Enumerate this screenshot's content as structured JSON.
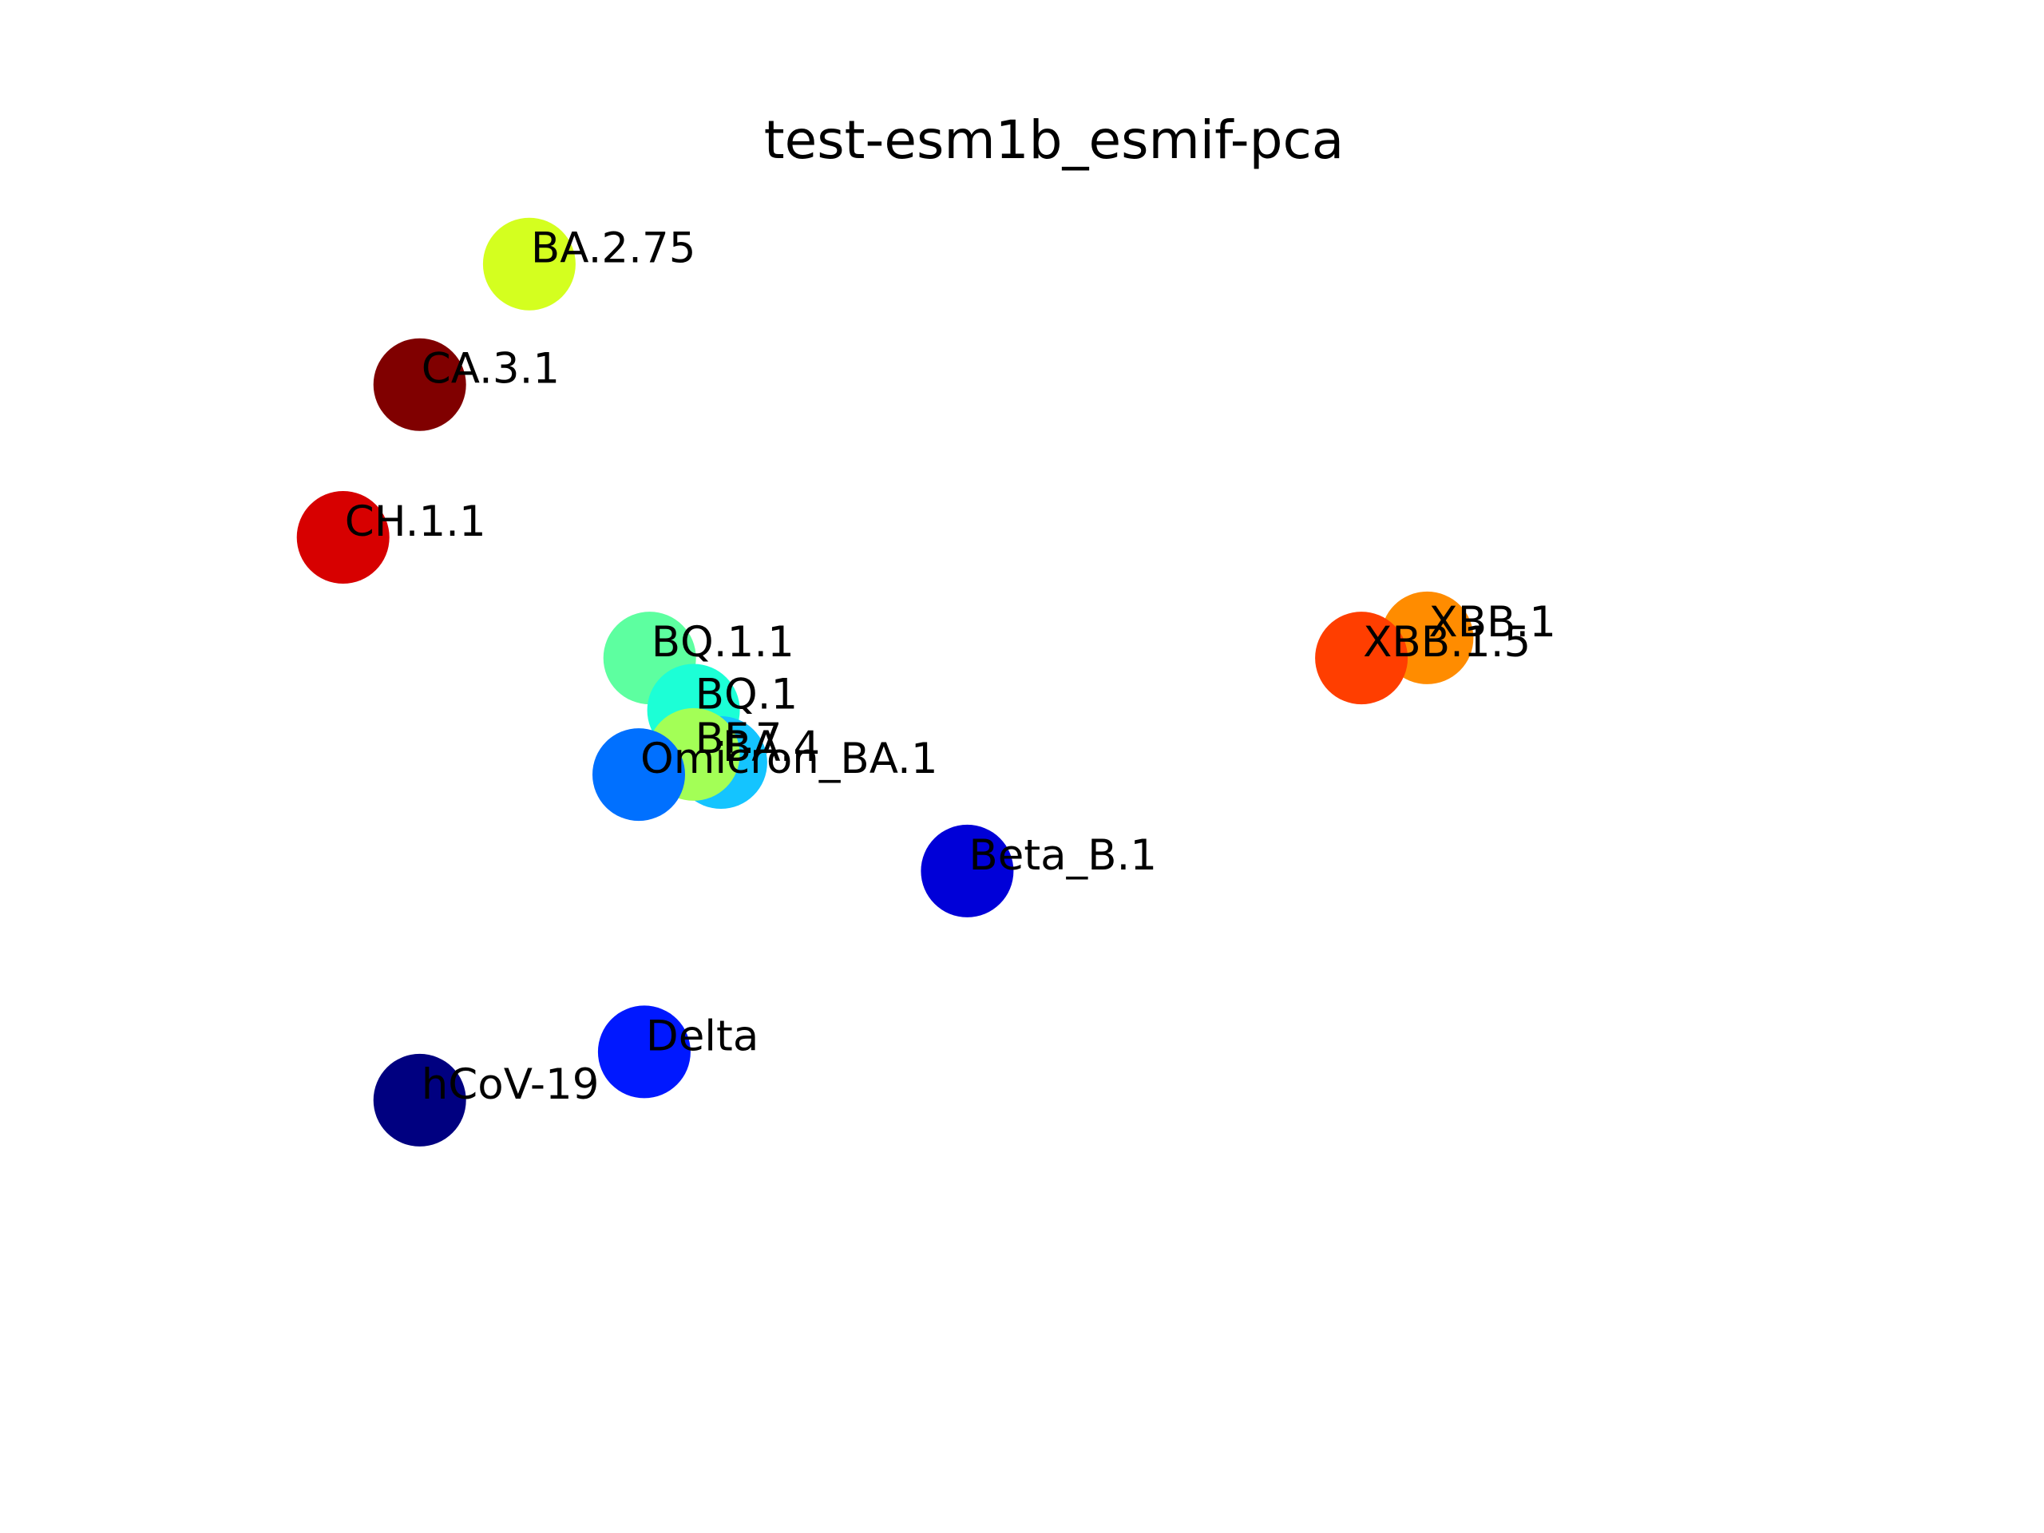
{
  "chart_data": {
    "type": "scatter",
    "title": "test-esm1b_esmif-pca",
    "xlabel": "",
    "ylabel": "",
    "axes_visible": false,
    "grid": false,
    "xlim": [
      -3.5,
      10.5
    ],
    "ylim": [
      -7.5,
      7.0
    ],
    "points": [
      {
        "label": "BA.2.75",
        "x": -1.0,
        "y": 6.0,
        "color": "#d4ff1f"
      },
      {
        "label": "CA.3.1",
        "x": -2.0,
        "y": 4.5,
        "color": "#800000"
      },
      {
        "label": "CH.1.1",
        "x": -2.7,
        "y": 2.6,
        "color": "#d70000"
      },
      {
        "label": "BQ.1.1",
        "x": 0.1,
        "y": 1.1,
        "color": "#5dffa0"
      },
      {
        "label": "BQ.1",
        "x": 0.5,
        "y": 0.45,
        "color": "#1cffd6"
      },
      {
        "label": "BA.4",
        "x": 0.75,
        "y": -0.2,
        "color": "#14c4ff"
      },
      {
        "label": "BF.7",
        "x": 0.5,
        "y": -0.1,
        "color": "#a3ff56"
      },
      {
        "label": "Omicron_BA.1",
        "x": 0.0,
        "y": -0.35,
        "color": "#0070ff"
      },
      {
        "label": "Beta_B.1",
        "x": 3.0,
        "y": -1.55,
        "color": "#0000d8"
      },
      {
        "label": "Delta",
        "x": 0.05,
        "y": -3.8,
        "color": "#0018ff"
      },
      {
        "label": "hCoV-19",
        "x": -2.0,
        "y": -4.4,
        "color": "#000080"
      },
      {
        "label": "XBB.1",
        "x": 7.2,
        "y": 1.35,
        "color": "#ff8c00"
      },
      {
        "label": "XBB.1.5",
        "x": 6.6,
        "y": 1.1,
        "color": "#ff3e00"
      }
    ]
  }
}
